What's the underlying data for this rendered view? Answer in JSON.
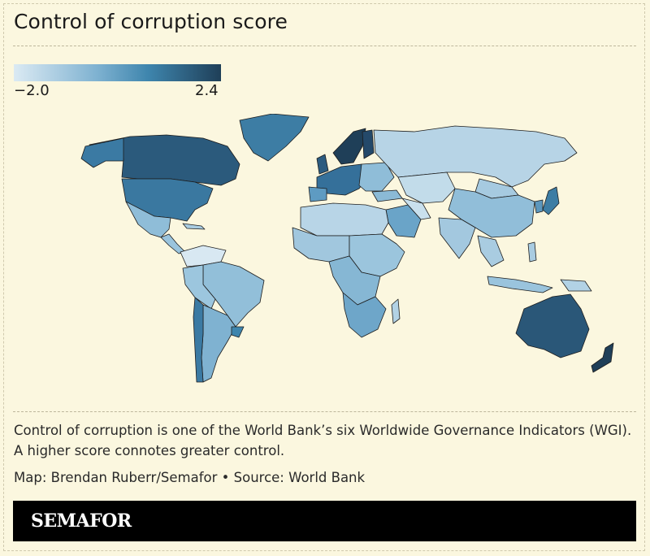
{
  "title": "Control of corruption score",
  "legend": {
    "min_label": "−2.0",
    "max_label": "2.4",
    "colors": [
      "#dbeaf3",
      "#7fb2d1",
      "#3e85ad",
      "#1f3f58"
    ]
  },
  "description": "Control of corruption is one of the World Bank’s six Worldwide Governance Indicators (WGI). A higher score connotes greater control.",
  "credit": "Map: Brendan Ruberr/Semafor • Source: World Bank",
  "brand": "SEMAFOR",
  "colors": {
    "background": "#fbf7df",
    "brand_bar": "#000000",
    "high": "#1f3f58",
    "low": "#dbeaf3"
  }
}
